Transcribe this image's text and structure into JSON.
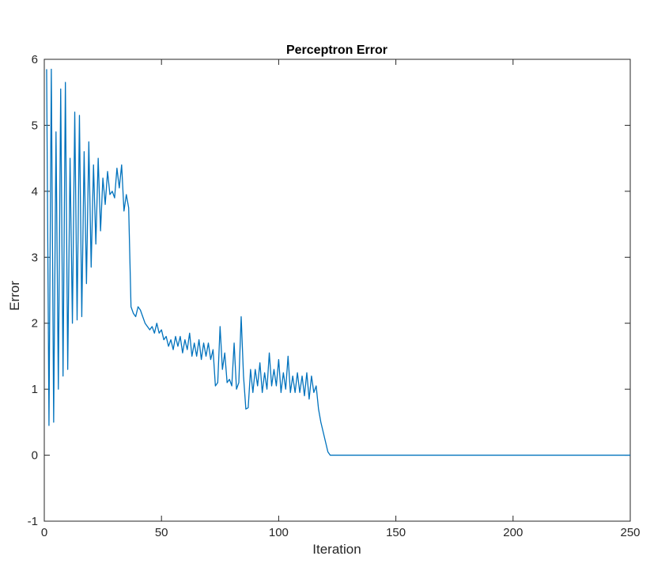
{
  "chart_data": {
    "type": "line",
    "title": "Perceptron Error",
    "xlabel": "Iteration",
    "ylabel": "Error",
    "xlim": [
      0,
      250
    ],
    "ylim": [
      -1,
      6
    ],
    "xticks": [
      "0",
      "50",
      "100",
      "150",
      "200",
      "250"
    ],
    "yticks": [
      "-1",
      "0",
      "1",
      "2",
      "3",
      "4",
      "5",
      "6"
    ],
    "grid": false,
    "color": "#0072BD",
    "series": [
      {
        "x": [
          1,
          2,
          3,
          4,
          5,
          6,
          7,
          8,
          9,
          10,
          11,
          12,
          13,
          14,
          15,
          16,
          17,
          18,
          19,
          20,
          21,
          22,
          23,
          24,
          25,
          26,
          27,
          28,
          29,
          30,
          31,
          32,
          33,
          34,
          35,
          36,
          37,
          38,
          39,
          40,
          41,
          42,
          43,
          44,
          45,
          46,
          47,
          48,
          49,
          50,
          51,
          52,
          53,
          54,
          55,
          56,
          57,
          58,
          59,
          60,
          61,
          62,
          63,
          64,
          65,
          66,
          67,
          68,
          69,
          70,
          71,
          72,
          73,
          74,
          75,
          76,
          77,
          78,
          79,
          80,
          81,
          82,
          83,
          84,
          85,
          86,
          87,
          88,
          89,
          90,
          91,
          92,
          93,
          94,
          95,
          96,
          97,
          98,
          99,
          100,
          101,
          102,
          103,
          104,
          105,
          106,
          107,
          108,
          109,
          110,
          111,
          112,
          113,
          114,
          115,
          116,
          117,
          118,
          119,
          120,
          121,
          122,
          123,
          124,
          125,
          126,
          130,
          150,
          200,
          250
        ],
        "y": [
          5.85,
          0.45,
          5.85,
          0.5,
          4.9,
          1.0,
          5.55,
          1.2,
          5.65,
          1.3,
          4.5,
          2.0,
          5.2,
          2.05,
          5.15,
          2.1,
          4.6,
          2.6,
          4.75,
          2.85,
          4.4,
          3.2,
          4.5,
          3.4,
          4.2,
          3.8,
          4.3,
          3.95,
          4.0,
          3.9,
          4.35,
          4.05,
          4.4,
          3.7,
          3.95,
          3.75,
          2.25,
          2.15,
          2.1,
          2.25,
          2.2,
          2.1,
          2.0,
          1.95,
          1.9,
          1.95,
          1.85,
          2.0,
          1.85,
          1.9,
          1.75,
          1.8,
          1.65,
          1.75,
          1.6,
          1.8,
          1.65,
          1.8,
          1.55,
          1.75,
          1.6,
          1.85,
          1.5,
          1.7,
          1.5,
          1.75,
          1.45,
          1.7,
          1.5,
          1.7,
          1.45,
          1.6,
          1.05,
          1.1,
          1.95,
          1.3,
          1.55,
          1.1,
          1.15,
          1.05,
          1.7,
          1.0,
          1.1,
          2.1,
          1.2,
          0.7,
          0.72,
          1.3,
          0.95,
          1.3,
          1.05,
          1.4,
          0.95,
          1.25,
          1.0,
          1.55,
          1.05,
          1.3,
          1.05,
          1.45,
          0.95,
          1.25,
          1.0,
          1.5,
          0.95,
          1.2,
          0.95,
          1.25,
          0.95,
          1.2,
          0.9,
          1.25,
          0.85,
          1.2,
          0.95,
          1.05,
          0.7,
          0.5,
          0.35,
          0.2,
          0.05,
          0.0,
          0.0,
          0.0,
          0.0,
          0.0,
          0.0,
          0.0,
          0.0,
          0.0
        ]
      }
    ]
  }
}
